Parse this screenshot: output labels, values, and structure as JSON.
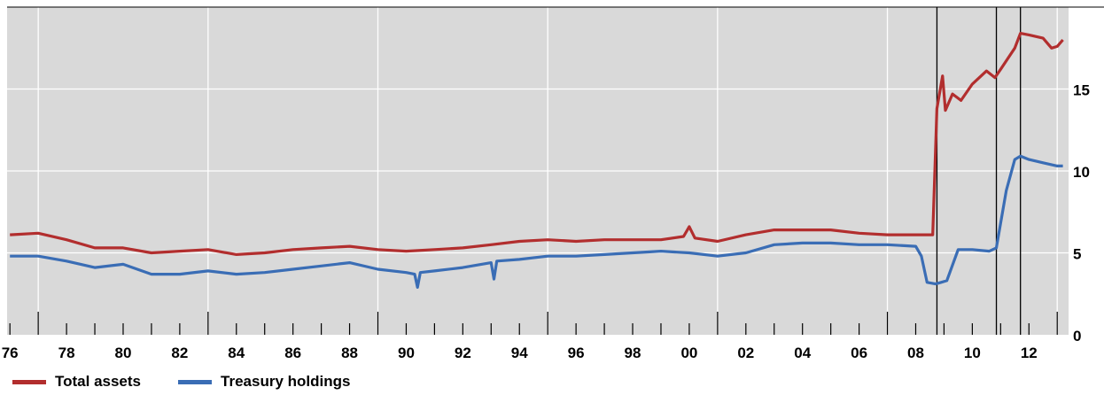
{
  "chart_data": {
    "type": "line",
    "title": "",
    "xlabel": "",
    "ylabel": "",
    "x_tick_labels": [
      "76",
      "78",
      "80",
      "82",
      "84",
      "86",
      "88",
      "90",
      "92",
      "94",
      "96",
      "98",
      "00",
      "02",
      "04",
      "06",
      "08",
      "10",
      "12"
    ],
    "y_tick_labels": [
      "0",
      "5",
      "10",
      "15"
    ],
    "ylim": [
      0,
      20
    ],
    "xlim": [
      1975.9,
      2013.4
    ],
    "grid": true,
    "legend_position": "bottom-left",
    "vertical_markers": [
      2008.75,
      2010.85,
      2011.7
    ],
    "series": [
      {
        "name": "Total assets",
        "color": "#b22e2e",
        "points": [
          [
            1976.0,
            6.1
          ],
          [
            1977.0,
            6.2
          ],
          [
            1978.0,
            5.8
          ],
          [
            1979.0,
            5.3
          ],
          [
            1980.0,
            5.3
          ],
          [
            1981.0,
            5.0
          ],
          [
            1982.0,
            5.1
          ],
          [
            1983.0,
            5.2
          ],
          [
            1984.0,
            4.9
          ],
          [
            1985.0,
            5.0
          ],
          [
            1986.0,
            5.2
          ],
          [
            1987.0,
            5.3
          ],
          [
            1988.0,
            5.4
          ],
          [
            1989.0,
            5.2
          ],
          [
            1990.0,
            5.1
          ],
          [
            1991.0,
            5.2
          ],
          [
            1992.0,
            5.3
          ],
          [
            1993.0,
            5.5
          ],
          [
            1994.0,
            5.7
          ],
          [
            1995.0,
            5.8
          ],
          [
            1996.0,
            5.7
          ],
          [
            1997.0,
            5.8
          ],
          [
            1998.0,
            5.8
          ],
          [
            1999.0,
            5.8
          ],
          [
            1999.8,
            6.0
          ],
          [
            2000.0,
            6.6
          ],
          [
            2000.2,
            5.9
          ],
          [
            2001.0,
            5.7
          ],
          [
            2002.0,
            6.1
          ],
          [
            2003.0,
            6.4
          ],
          [
            2004.0,
            6.4
          ],
          [
            2005.0,
            6.4
          ],
          [
            2006.0,
            6.2
          ],
          [
            2007.0,
            6.1
          ],
          [
            2008.0,
            6.1
          ],
          [
            2008.6,
            6.1
          ],
          [
            2008.75,
            13.8
          ],
          [
            2008.95,
            15.8
          ],
          [
            2009.05,
            13.7
          ],
          [
            2009.3,
            14.7
          ],
          [
            2009.6,
            14.3
          ],
          [
            2010.0,
            15.3
          ],
          [
            2010.5,
            16.1
          ],
          [
            2010.8,
            15.7
          ],
          [
            2011.0,
            16.2
          ],
          [
            2011.5,
            17.5
          ],
          [
            2011.7,
            18.4
          ],
          [
            2012.0,
            18.3
          ],
          [
            2012.5,
            18.1
          ],
          [
            2012.8,
            17.5
          ],
          [
            2013.0,
            17.6
          ],
          [
            2013.2,
            18.0
          ]
        ]
      },
      {
        "name": "Treasury holdings",
        "color": "#3a6db5",
        "points": [
          [
            1976.0,
            4.8
          ],
          [
            1977.0,
            4.8
          ],
          [
            1978.0,
            4.5
          ],
          [
            1979.0,
            4.1
          ],
          [
            1980.0,
            4.3
          ],
          [
            1981.0,
            3.7
          ],
          [
            1982.0,
            3.7
          ],
          [
            1983.0,
            3.9
          ],
          [
            1984.0,
            3.7
          ],
          [
            1985.0,
            3.8
          ],
          [
            1986.0,
            4.0
          ],
          [
            1987.0,
            4.2
          ],
          [
            1988.0,
            4.4
          ],
          [
            1989.0,
            4.0
          ],
          [
            1990.0,
            3.8
          ],
          [
            1990.3,
            3.7
          ],
          [
            1990.4,
            2.9
          ],
          [
            1990.5,
            3.8
          ],
          [
            1991.0,
            3.9
          ],
          [
            1992.0,
            4.1
          ],
          [
            1993.0,
            4.4
          ],
          [
            1993.1,
            3.4
          ],
          [
            1993.2,
            4.5
          ],
          [
            1994.0,
            4.6
          ],
          [
            1995.0,
            4.8
          ],
          [
            1996.0,
            4.8
          ],
          [
            1997.0,
            4.9
          ],
          [
            1998.0,
            5.0
          ],
          [
            1999.0,
            5.1
          ],
          [
            2000.0,
            5.0
          ],
          [
            2001.0,
            4.8
          ],
          [
            2002.0,
            5.0
          ],
          [
            2003.0,
            5.5
          ],
          [
            2004.0,
            5.6
          ],
          [
            2005.0,
            5.6
          ],
          [
            2006.0,
            5.5
          ],
          [
            2007.0,
            5.5
          ],
          [
            2008.0,
            5.4
          ],
          [
            2008.2,
            4.8
          ],
          [
            2008.4,
            3.2
          ],
          [
            2008.7,
            3.1
          ],
          [
            2008.9,
            3.2
          ],
          [
            2009.1,
            3.3
          ],
          [
            2009.5,
            5.2
          ],
          [
            2010.0,
            5.2
          ],
          [
            2010.6,
            5.1
          ],
          [
            2010.85,
            5.3
          ],
          [
            2011.0,
            6.8
          ],
          [
            2011.2,
            8.8
          ],
          [
            2011.5,
            10.7
          ],
          [
            2011.7,
            10.9
          ],
          [
            2012.0,
            10.7
          ],
          [
            2012.5,
            10.5
          ],
          [
            2013.0,
            10.3
          ],
          [
            2013.2,
            10.3
          ]
        ]
      }
    ]
  }
}
